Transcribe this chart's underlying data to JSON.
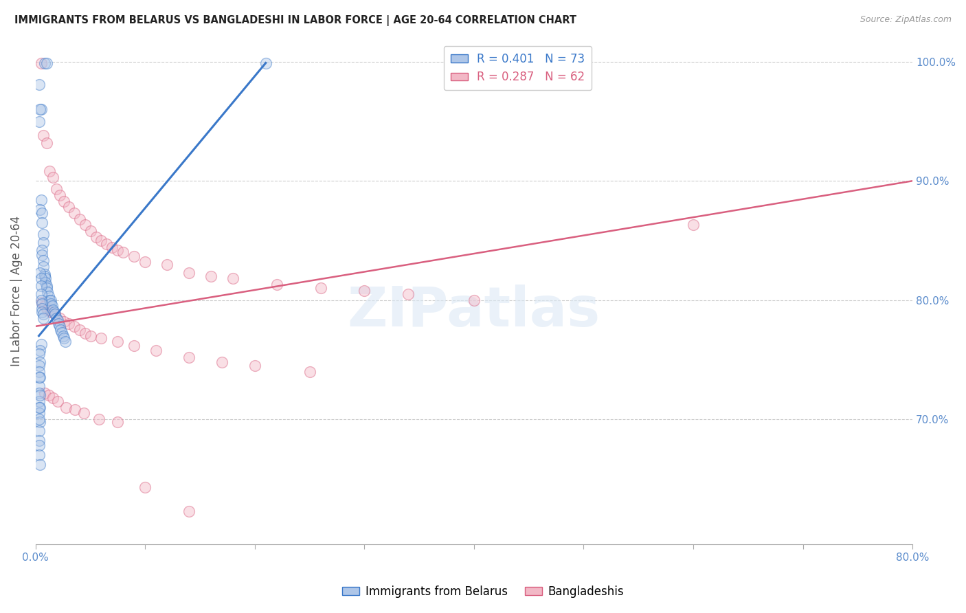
{
  "title": "IMMIGRANTS FROM BELARUS VS BANGLADESHI IN LABOR FORCE | AGE 20-64 CORRELATION CHART",
  "source": "Source: ZipAtlas.com",
  "ylabel_left": "In Labor Force | Age 20-64",
  "legend_label1": "Immigrants from Belarus",
  "legend_label2": "Bangladeshis",
  "legend_entry1": "R = 0.401   N = 73",
  "legend_entry2": "R = 0.287   N = 62",
  "watermark": "ZIPatlas",
  "blue_dot_color": "#aec6e8",
  "pink_dot_color": "#f2b8c6",
  "blue_line_color": "#3a78c9",
  "pink_line_color": "#d95f7f",
  "axis_label_color": "#5b8ccc",
  "grid_color": "#cccccc",
  "x_min": 0.0,
  "x_max": 0.8,
  "y_min": 0.595,
  "y_max": 1.02,
  "blue_scatter_x": [
    0.008,
    0.01,
    0.003,
    0.005,
    0.004,
    0.003,
    0.005,
    0.004,
    0.006,
    0.006,
    0.007,
    0.007,
    0.006,
    0.006,
    0.007,
    0.007,
    0.008,
    0.008,
    0.009,
    0.009,
    0.01,
    0.01,
    0.011,
    0.012,
    0.013,
    0.014,
    0.014,
    0.015,
    0.016,
    0.017,
    0.018,
    0.019,
    0.02,
    0.021,
    0.022,
    0.023,
    0.024,
    0.025,
    0.026,
    0.027,
    0.004,
    0.005,
    0.005,
    0.005,
    0.005,
    0.006,
    0.006,
    0.006,
    0.007,
    0.007,
    0.005,
    0.004,
    0.003,
    0.004,
    0.003,
    0.003,
    0.004,
    0.003,
    0.003,
    0.003,
    0.004,
    0.003,
    0.004,
    0.21,
    0.003,
    0.004,
    0.003,
    0.003,
    0.003,
    0.003,
    0.003,
    0.003,
    0.004
  ],
  "blue_scatter_y": [
    0.999,
    0.999,
    0.981,
    0.96,
    0.96,
    0.95,
    0.884,
    0.876,
    0.873,
    0.865,
    0.855,
    0.848,
    0.842,
    0.838,
    0.833,
    0.828,
    0.822,
    0.82,
    0.818,
    0.815,
    0.812,
    0.81,
    0.807,
    0.803,
    0.8,
    0.8,
    0.797,
    0.795,
    0.792,
    0.79,
    0.788,
    0.785,
    0.783,
    0.78,
    0.778,
    0.775,
    0.773,
    0.77,
    0.768,
    0.765,
    0.823,
    0.818,
    0.812,
    0.805,
    0.8,
    0.797,
    0.793,
    0.79,
    0.788,
    0.785,
    0.763,
    0.758,
    0.755,
    0.748,
    0.745,
    0.74,
    0.735,
    0.728,
    0.722,
    0.715,
    0.71,
    0.705,
    0.698,
    0.999,
    0.735,
    0.72,
    0.71,
    0.7,
    0.69,
    0.682,
    0.678,
    0.67,
    0.662
  ],
  "pink_scatter_x": [
    0.005,
    0.007,
    0.01,
    0.013,
    0.016,
    0.019,
    0.022,
    0.026,
    0.03,
    0.035,
    0.04,
    0.045,
    0.05,
    0.055,
    0.06,
    0.065,
    0.07,
    0.075,
    0.08,
    0.09,
    0.1,
    0.12,
    0.14,
    0.16,
    0.18,
    0.22,
    0.26,
    0.3,
    0.34,
    0.4,
    0.006,
    0.008,
    0.011,
    0.014,
    0.018,
    0.022,
    0.026,
    0.03,
    0.035,
    0.04,
    0.045,
    0.05,
    0.06,
    0.075,
    0.09,
    0.11,
    0.14,
    0.17,
    0.2,
    0.25,
    0.6,
    0.008,
    0.012,
    0.016,
    0.02,
    0.028,
    0.036,
    0.044,
    0.058,
    0.075,
    0.1,
    0.14
  ],
  "pink_scatter_y": [
    0.999,
    0.938,
    0.932,
    0.908,
    0.903,
    0.893,
    0.888,
    0.883,
    0.878,
    0.873,
    0.868,
    0.863,
    0.858,
    0.853,
    0.85,
    0.847,
    0.844,
    0.842,
    0.84,
    0.837,
    0.832,
    0.83,
    0.823,
    0.82,
    0.818,
    0.813,
    0.81,
    0.808,
    0.805,
    0.8,
    0.798,
    0.795,
    0.792,
    0.79,
    0.788,
    0.785,
    0.782,
    0.78,
    0.778,
    0.775,
    0.772,
    0.77,
    0.768,
    0.765,
    0.762,
    0.758,
    0.752,
    0.748,
    0.745,
    0.74,
    0.863,
    0.722,
    0.72,
    0.718,
    0.715,
    0.71,
    0.708,
    0.705,
    0.7,
    0.698,
    0.643,
    0.623
  ],
  "blue_trend_x": [
    0.003,
    0.21
  ],
  "blue_trend_y": [
    0.77,
    0.999
  ],
  "pink_trend_x": [
    0.0,
    0.8
  ],
  "pink_trend_y": [
    0.778,
    0.9
  ],
  "dot_size": 130,
  "dot_alpha": 0.45,
  "dot_linewidth": 1.0
}
